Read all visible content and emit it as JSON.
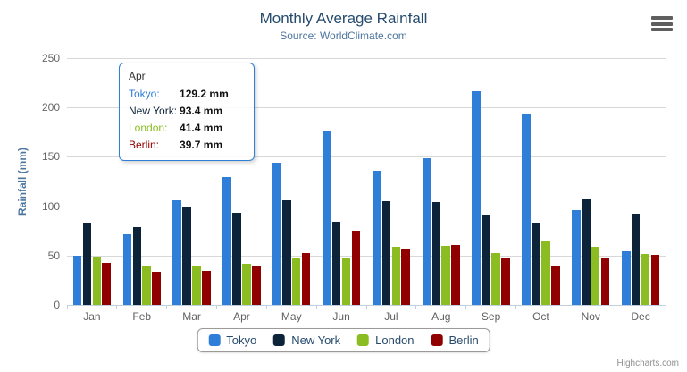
{
  "chart_data": {
    "type": "bar",
    "title": "Monthly Average Rainfall",
    "subtitle": "Source: WorldClimate.com",
    "xlabel": "",
    "ylabel": "Rainfall (mm)",
    "ylim": [
      0,
      250
    ],
    "yticks": [
      0,
      50,
      100,
      150,
      200,
      250
    ],
    "grid": true,
    "legend_position": "bottom",
    "value_suffix": "mm",
    "categories": [
      "Jan",
      "Feb",
      "Mar",
      "Apr",
      "May",
      "Jun",
      "Jul",
      "Aug",
      "Sep",
      "Oct",
      "Nov",
      "Dec"
    ],
    "series": [
      {
        "name": "Tokyo",
        "color": "#2f7ed8",
        "values": [
          49.9,
          71.5,
          106.4,
          129.2,
          144.0,
          176.0,
          135.6,
          148.5,
          216.4,
          194.1,
          95.6,
          54.4
        ]
      },
      {
        "name": "New York",
        "color": "#0d233a",
        "values": [
          83.6,
          78.8,
          98.5,
          93.4,
          106.0,
          84.5,
          105.0,
          104.3,
          91.2,
          83.5,
          106.6,
          92.3
        ]
      },
      {
        "name": "London",
        "color": "#8bbc21",
        "values": [
          48.9,
          38.8,
          39.3,
          41.4,
          47.0,
          48.3,
          59.0,
          59.6,
          52.4,
          65.2,
          59.3,
          51.2
        ]
      },
      {
        "name": "Berlin",
        "color": "#910000",
        "values": [
          42.4,
          33.2,
          34.5,
          39.7,
          52.6,
          75.5,
          57.4,
          60.4,
          47.6,
          39.1,
          46.8,
          51.1
        ]
      }
    ]
  },
  "tooltip": {
    "header": "Apr",
    "border_color": "#2f7ed8",
    "rows": [
      {
        "label": "Tokyo:",
        "value": "129.2 mm",
        "color": "#2f7ed8"
      },
      {
        "label": "New York:",
        "value": "93.4 mm",
        "color": "#0d233a"
      },
      {
        "label": "London:",
        "value": "41.4 mm",
        "color": "#8bbc21"
      },
      {
        "label": "Berlin:",
        "value": "39.7 mm",
        "color": "#910000"
      }
    ]
  },
  "credits": {
    "label": "Highcharts.com"
  },
  "colors": {
    "title": "#274b6d",
    "subtitle": "#4d759e",
    "axis_label": "#666666",
    "axis_line": "#C0D0E0",
    "gridline": "#D8D8D8",
    "legend_text": "#274b6d"
  }
}
